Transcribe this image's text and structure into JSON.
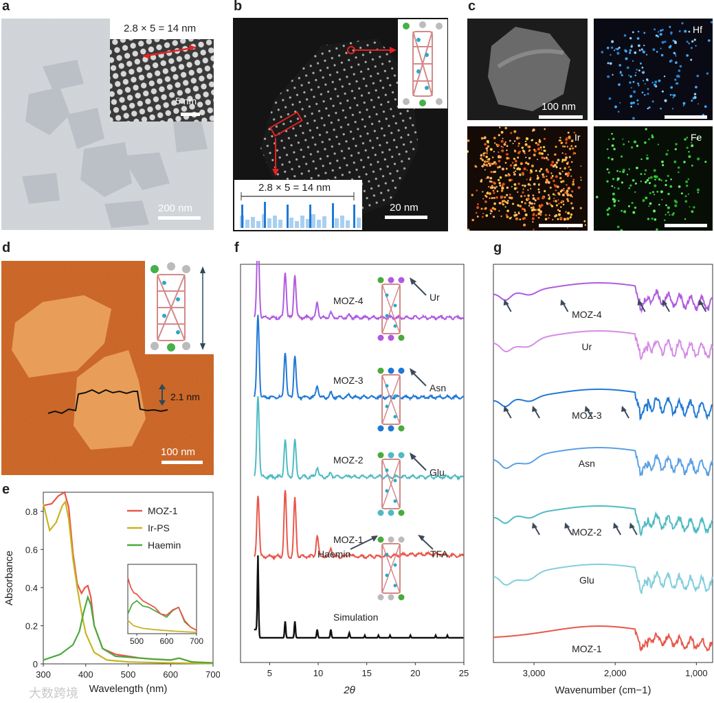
{
  "panels": {
    "a": {
      "label": "a",
      "inset_label": "2.8 × 5 = 14 nm",
      "inset_scale": "5 nm",
      "scale": "200 nm"
    },
    "b": {
      "label": "b",
      "profile_label": "2.8 × 5 = 14 nm",
      "scale": "20 nm"
    },
    "c": {
      "label": "c",
      "scale": "100 nm",
      "maps": [
        "Hf",
        "Ir",
        "Fe"
      ]
    },
    "d": {
      "label": "d",
      "height": "2.1 nm",
      "scale": "100 nm"
    },
    "e": {
      "label": "e"
    },
    "f": {
      "label": "f"
    },
    "g": {
      "label": "g"
    }
  },
  "colors": {
    "moz1": "#e8574a",
    "irps": "#c8b41e",
    "haemin": "#4aaa3c",
    "moz2": "#4fbac4",
    "moz3": "#1f78d6",
    "moz4": "#b05ae0",
    "sim": "#111111",
    "ur": "#d58be6",
    "asn": "#5aa0e6",
    "glu": "#82cedc"
  },
  "chart_data": [
    {
      "type": "line",
      "id": "e",
      "xlabel": "Wavelength (nm)",
      "ylabel": "Absorbance",
      "xlim": [
        300,
        700
      ],
      "ylim": [
        0,
        0.9
      ],
      "xticks": [
        "300",
        "400",
        "500",
        "600",
        "700"
      ],
      "yticks": [
        "0",
        "0.2",
        "0.4",
        "0.6",
        "0.8"
      ],
      "series": [
        {
          "name": "MOZ-1",
          "x": [
            300,
            320,
            335,
            350,
            360,
            370,
            380,
            390,
            398,
            405,
            412,
            420,
            440,
            470,
            500,
            530,
            560,
            600,
            620,
            650,
            700
          ],
          "y": [
            0.83,
            0.84,
            0.88,
            0.9,
            0.82,
            0.58,
            0.42,
            0.37,
            0.4,
            0.41,
            0.35,
            0.2,
            0.08,
            0.05,
            0.04,
            0.03,
            0.025,
            0.02,
            0.03,
            0.01,
            0.005
          ]
        },
        {
          "name": "Ir-PS",
          "x": [
            300,
            315,
            330,
            345,
            352,
            360,
            370,
            380,
            390,
            400,
            420,
            450,
            500,
            600,
            700
          ],
          "y": [
            0.84,
            0.7,
            0.74,
            0.83,
            0.85,
            0.76,
            0.55,
            0.4,
            0.27,
            0.16,
            0.06,
            0.02,
            0.01,
            0.005,
            0.002
          ]
        },
        {
          "name": "Haemin",
          "x": [
            300,
            340,
            370,
            385,
            395,
            405,
            412,
            420,
            440,
            470,
            500,
            530,
            560,
            600,
            620,
            650,
            700
          ],
          "y": [
            0.02,
            0.05,
            0.1,
            0.17,
            0.27,
            0.35,
            0.31,
            0.2,
            0.08,
            0.04,
            0.035,
            0.03,
            0.025,
            0.02,
            0.03,
            0.01,
            0.005
          ]
        }
      ],
      "inset": {
        "xticks": [
          "500",
          "600",
          "700"
        ]
      },
      "legend": [
        "MOZ-1",
        "Ir-PS",
        "Haemin"
      ]
    },
    {
      "type": "line",
      "id": "f",
      "xlabel": "2θ",
      "xlim": [
        2,
        25
      ],
      "xticks": [
        "5",
        "10",
        "15",
        "20",
        "25"
      ],
      "series": [
        {
          "name": "MOZ-4",
          "offset": 0.9
        },
        {
          "name": "MOZ-3",
          "offset": 0.7
        },
        {
          "name": "MOZ-2",
          "offset": 0.5
        },
        {
          "name": "MOZ-1",
          "offset": 0.3
        },
        {
          "name": "Simulation",
          "offset": 0.1
        }
      ],
      "peaks_2theta": [
        3.8,
        6.6,
        7.6,
        9.9,
        11.3,
        13.2
      ],
      "annotations": [
        "Ur",
        "Asn",
        "Glu",
        "Haemin",
        "TFA"
      ]
    },
    {
      "type": "line",
      "id": "g",
      "xlabel": "Wavenumber (cm−1)",
      "xlim": [
        3500,
        800
      ],
      "xticks": [
        "3,000",
        "2,000",
        "1,000"
      ],
      "series": [
        {
          "name": "MOZ-4"
        },
        {
          "name": "Ur"
        },
        {
          "name": "MOZ-3"
        },
        {
          "name": "Asn"
        },
        {
          "name": "MOZ-2"
        },
        {
          "name": "Glu"
        },
        {
          "name": "MOZ-1"
        }
      ]
    }
  ],
  "watermark": "大数跨境"
}
